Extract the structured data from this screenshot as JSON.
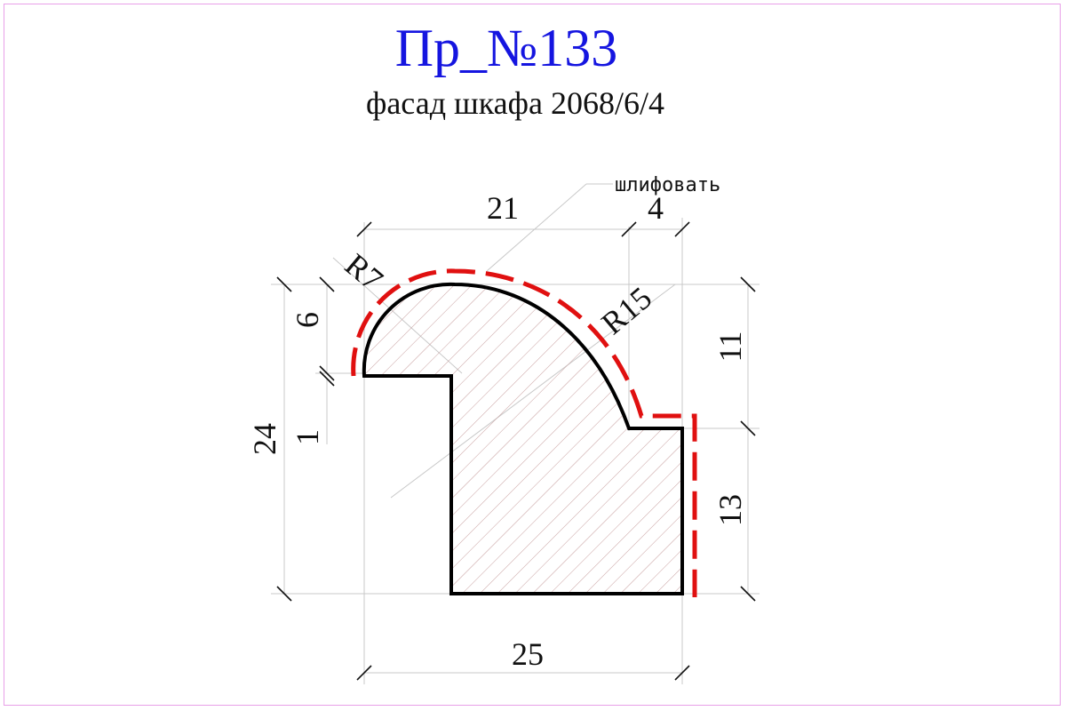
{
  "title": "Пр_№133",
  "subtitle": "фасад шкафа 2068/6/4",
  "note": "шлифовать",
  "dimensions": {
    "top_width": "21",
    "top_right": "4",
    "radius_small": "R7",
    "radius_large": "R15",
    "left_upper": "6",
    "left_lower": "1",
    "total_height": "24",
    "right_upper": "11",
    "right_lower": "13",
    "bottom_width": "25"
  },
  "colors": {
    "title": "#1515e0",
    "outline": "#000000",
    "sanding_line": "#e01010",
    "hatch": "#c8a0a0",
    "construction": "#c8c8c8",
    "frame": "#e8a0e8"
  }
}
